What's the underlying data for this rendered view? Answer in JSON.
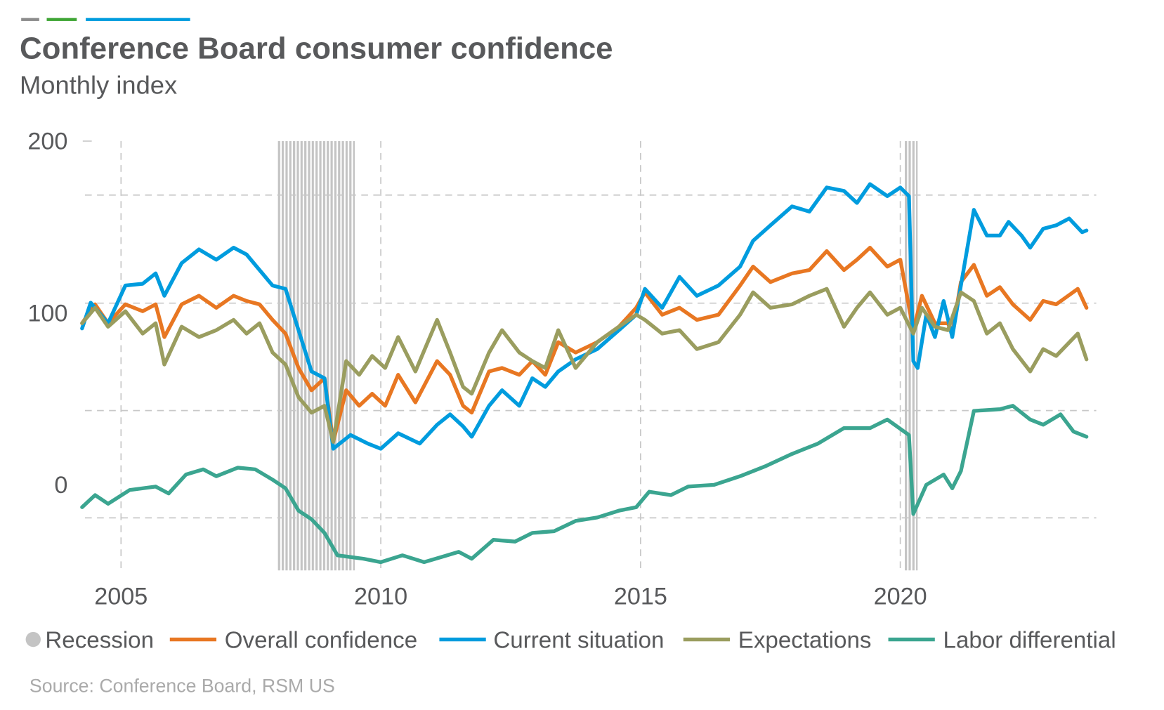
{
  "chart_data": {
    "type": "line",
    "title": "Conference Board consumer confidence",
    "subtitle": "Monthly index",
    "source": "Source: Conference Board, RSM US",
    "xlabel": "",
    "ylabel": "",
    "ylim": [
      -50,
      200
    ],
    "xlim": [
      "2004-04",
      "2023-08"
    ],
    "y_ticks": [
      "200",
      "100",
      "0"
    ],
    "x_ticks": [
      "2005",
      "2010",
      "2015",
      "2020"
    ],
    "grid": true,
    "legend_position": "bottom",
    "recessions": [
      {
        "start": "2008-01",
        "end": "2009-06"
      },
      {
        "start": "2020-02",
        "end": "2020-04"
      }
    ],
    "legend": {
      "recession": "Recession",
      "recession_color": "#c4c4c4"
    },
    "series": [
      {
        "name": "Overall confidence",
        "color": "#e87722",
        "points": [
          [
            "2004-04",
            94
          ],
          [
            "2004-07",
            105
          ],
          [
            "2004-10",
            94
          ],
          [
            "2005-02",
            105
          ],
          [
            "2005-06",
            101
          ],
          [
            "2005-09",
            105
          ],
          [
            "2005-11",
            86
          ],
          [
            "2006-03",
            105
          ],
          [
            "2006-07",
            110
          ],
          [
            "2006-11",
            103
          ],
          [
            "2007-03",
            110
          ],
          [
            "2007-06",
            107
          ],
          [
            "2007-09",
            105
          ],
          [
            "2007-12",
            96
          ],
          [
            "2008-03",
            88
          ],
          [
            "2008-06",
            68
          ],
          [
            "2008-09",
            55
          ],
          [
            "2008-12",
            62
          ],
          [
            "2009-02",
            25
          ],
          [
            "2009-05",
            55
          ],
          [
            "2009-08",
            46
          ],
          [
            "2009-11",
            53
          ],
          [
            "2010-02",
            46
          ],
          [
            "2010-05",
            64
          ],
          [
            "2010-09",
            48
          ],
          [
            "2011-02",
            72
          ],
          [
            "2011-05",
            64
          ],
          [
            "2011-08",
            46
          ],
          [
            "2011-10",
            42
          ],
          [
            "2012-02",
            66
          ],
          [
            "2012-05",
            68
          ],
          [
            "2012-09",
            64
          ],
          [
            "2012-12",
            72
          ],
          [
            "2013-03",
            64
          ],
          [
            "2013-06",
            83
          ],
          [
            "2013-10",
            77
          ],
          [
            "2014-03",
            83
          ],
          [
            "2014-08",
            92
          ],
          [
            "2014-12",
            103
          ],
          [
            "2015-02",
            112
          ],
          [
            "2015-06",
            99
          ],
          [
            "2015-10",
            103
          ],
          [
            "2016-02",
            96
          ],
          [
            "2016-07",
            99
          ],
          [
            "2016-12",
            116
          ],
          [
            "2017-03",
            127
          ],
          [
            "2017-07",
            118
          ],
          [
            "2017-12",
            123
          ],
          [
            "2018-04",
            125
          ],
          [
            "2018-08",
            136
          ],
          [
            "2018-12",
            125
          ],
          [
            "2019-03",
            131
          ],
          [
            "2019-06",
            138
          ],
          [
            "2019-10",
            127
          ],
          [
            "2020-01",
            131
          ],
          [
            "2020-04",
            90
          ],
          [
            "2020-06",
            110
          ],
          [
            "2020-09",
            94
          ],
          [
            "2020-12",
            94
          ],
          [
            "2021-01",
            88
          ],
          [
            "2021-03",
            118
          ],
          [
            "2021-06",
            128
          ],
          [
            "2021-09",
            110
          ],
          [
            "2021-12",
            115
          ],
          [
            "2022-03",
            105
          ],
          [
            "2022-07",
            96
          ],
          [
            "2022-10",
            107
          ],
          [
            "2023-01",
            105
          ],
          [
            "2023-06",
            114
          ],
          [
            "2023-08",
            103
          ]
        ]
      },
      {
        "name": "Current situation",
        "color": "#009cde",
        "points": [
          [
            "2004-04",
            91
          ],
          [
            "2004-06",
            106
          ],
          [
            "2004-10",
            94
          ],
          [
            "2005-02",
            116
          ],
          [
            "2005-06",
            117
          ],
          [
            "2005-09",
            123
          ],
          [
            "2005-11",
            110
          ],
          [
            "2006-03",
            129
          ],
          [
            "2006-07",
            137
          ],
          [
            "2006-11",
            131
          ],
          [
            "2007-03",
            138
          ],
          [
            "2007-06",
            134
          ],
          [
            "2007-09",
            125
          ],
          [
            "2007-12",
            116
          ],
          [
            "2008-03",
            114
          ],
          [
            "2008-06",
            90
          ],
          [
            "2008-09",
            66
          ],
          [
            "2008-12",
            62
          ],
          [
            "2009-02",
            21
          ],
          [
            "2009-06",
            29
          ],
          [
            "2009-10",
            24
          ],
          [
            "2010-01",
            21
          ],
          [
            "2010-05",
            30
          ],
          [
            "2010-10",
            24
          ],
          [
            "2011-02",
            35
          ],
          [
            "2011-05",
            41
          ],
          [
            "2011-08",
            34
          ],
          [
            "2011-10",
            28
          ],
          [
            "2012-02",
            46
          ],
          [
            "2012-05",
            55
          ],
          [
            "2012-09",
            46
          ],
          [
            "2012-12",
            62
          ],
          [
            "2013-03",
            57
          ],
          [
            "2013-06",
            66
          ],
          [
            "2013-10",
            73
          ],
          [
            "2014-03",
            79
          ],
          [
            "2014-08",
            90
          ],
          [
            "2014-12",
            99
          ],
          [
            "2015-02",
            114
          ],
          [
            "2015-06",
            103
          ],
          [
            "2015-10",
            121
          ],
          [
            "2016-02",
            110
          ],
          [
            "2016-07",
            116
          ],
          [
            "2016-12",
            127
          ],
          [
            "2017-03",
            142
          ],
          [
            "2017-07",
            151
          ],
          [
            "2017-12",
            162
          ],
          [
            "2018-04",
            159
          ],
          [
            "2018-08",
            173
          ],
          [
            "2018-12",
            171
          ],
          [
            "2019-03",
            164
          ],
          [
            "2019-06",
            175
          ],
          [
            "2019-10",
            168
          ],
          [
            "2020-01",
            173
          ],
          [
            "2020-03",
            168
          ],
          [
            "2020-04",
            72
          ],
          [
            "2020-05",
            68
          ],
          [
            "2020-07",
            99
          ],
          [
            "2020-09",
            86
          ],
          [
            "2020-11",
            107
          ],
          [
            "2021-01",
            86
          ],
          [
            "2021-03",
            116
          ],
          [
            "2021-06",
            160
          ],
          [
            "2021-09",
            145
          ],
          [
            "2021-12",
            145
          ],
          [
            "2022-02",
            153
          ],
          [
            "2022-05",
            145
          ],
          [
            "2022-07",
            138
          ],
          [
            "2022-10",
            149
          ],
          [
            "2023-01",
            151
          ],
          [
            "2023-04",
            155
          ],
          [
            "2023-07",
            147
          ],
          [
            "2023-08",
            148
          ]
        ]
      },
      {
        "name": "Expectations",
        "color": "#9a9d5f",
        "points": [
          [
            "2004-04",
            94
          ],
          [
            "2004-07",
            103
          ],
          [
            "2004-10",
            92
          ],
          [
            "2005-02",
            101
          ],
          [
            "2005-06",
            88
          ],
          [
            "2005-09",
            94
          ],
          [
            "2005-11",
            70
          ],
          [
            "2006-03",
            92
          ],
          [
            "2006-07",
            86
          ],
          [
            "2006-11",
            90
          ],
          [
            "2007-03",
            96
          ],
          [
            "2007-06",
            88
          ],
          [
            "2007-09",
            94
          ],
          [
            "2007-12",
            77
          ],
          [
            "2008-03",
            70
          ],
          [
            "2008-06",
            51
          ],
          [
            "2008-09",
            42
          ],
          [
            "2008-12",
            46
          ],
          [
            "2009-02",
            25
          ],
          [
            "2009-05",
            72
          ],
          [
            "2009-08",
            64
          ],
          [
            "2009-11",
            75
          ],
          [
            "2010-02",
            68
          ],
          [
            "2010-05",
            86
          ],
          [
            "2010-09",
            66
          ],
          [
            "2011-02",
            96
          ],
          [
            "2011-05",
            77
          ],
          [
            "2011-08",
            57
          ],
          [
            "2011-10",
            53
          ],
          [
            "2012-02",
            77
          ],
          [
            "2012-05",
            90
          ],
          [
            "2012-09",
            77
          ],
          [
            "2012-12",
            72
          ],
          [
            "2013-03",
            68
          ],
          [
            "2013-06",
            90
          ],
          [
            "2013-10",
            68
          ],
          [
            "2014-03",
            83
          ],
          [
            "2014-08",
            92
          ],
          [
            "2014-12",
            99
          ],
          [
            "2015-02",
            96
          ],
          [
            "2015-06",
            88
          ],
          [
            "2015-10",
            90
          ],
          [
            "2016-02",
            79
          ],
          [
            "2016-07",
            83
          ],
          [
            "2016-12",
            99
          ],
          [
            "2017-03",
            112
          ],
          [
            "2017-07",
            103
          ],
          [
            "2017-12",
            105
          ],
          [
            "2018-04",
            110
          ],
          [
            "2018-08",
            114
          ],
          [
            "2018-12",
            92
          ],
          [
            "2019-03",
            103
          ],
          [
            "2019-06",
            112
          ],
          [
            "2019-10",
            99
          ],
          [
            "2020-01",
            103
          ],
          [
            "2020-04",
            88
          ],
          [
            "2020-06",
            103
          ],
          [
            "2020-09",
            92
          ],
          [
            "2020-12",
            90
          ],
          [
            "2021-03",
            112
          ],
          [
            "2021-06",
            107
          ],
          [
            "2021-09",
            88
          ],
          [
            "2021-12",
            94
          ],
          [
            "2022-03",
            79
          ],
          [
            "2022-07",
            66
          ],
          [
            "2022-10",
            79
          ],
          [
            "2023-01",
            75
          ],
          [
            "2023-06",
            88
          ],
          [
            "2023-08",
            73
          ]
        ]
      },
      {
        "name": "Labor differential",
        "color": "#3ba590",
        "points": [
          [
            "2004-04",
            -13
          ],
          [
            "2004-07",
            -6
          ],
          [
            "2004-10",
            -11
          ],
          [
            "2005-03",
            -3
          ],
          [
            "2005-09",
            -1
          ],
          [
            "2005-12",
            -5
          ],
          [
            "2006-04",
            6
          ],
          [
            "2006-08",
            9
          ],
          [
            "2006-11",
            5
          ],
          [
            "2007-04",
            10
          ],
          [
            "2007-08",
            9
          ],
          [
            "2007-12",
            3
          ],
          [
            "2008-03",
            -2
          ],
          [
            "2008-06",
            -15
          ],
          [
            "2008-09",
            -20
          ],
          [
            "2008-12",
            -28
          ],
          [
            "2009-03",
            -41
          ],
          [
            "2009-06",
            -42
          ],
          [
            "2009-09",
            -43
          ],
          [
            "2010-01",
            -45
          ],
          [
            "2010-06",
            -41
          ],
          [
            "2010-11",
            -45
          ],
          [
            "2011-03",
            -42
          ],
          [
            "2011-07",
            -39
          ],
          [
            "2011-10",
            -43
          ],
          [
            "2012-03",
            -32
          ],
          [
            "2012-08",
            -33
          ],
          [
            "2012-12",
            -28
          ],
          [
            "2013-05",
            -27
          ],
          [
            "2013-10",
            -21
          ],
          [
            "2014-03",
            -19
          ],
          [
            "2014-08",
            -15
          ],
          [
            "2014-12",
            -13
          ],
          [
            "2015-03",
            -4
          ],
          [
            "2015-08",
            -6
          ],
          [
            "2015-12",
            -1
          ],
          [
            "2016-06",
            0
          ],
          [
            "2016-12",
            5
          ],
          [
            "2017-06",
            11
          ],
          [
            "2017-12",
            18
          ],
          [
            "2018-06",
            24
          ],
          [
            "2018-12",
            33
          ],
          [
            "2019-06",
            33
          ],
          [
            "2019-10",
            38
          ],
          [
            "2020-03",
            29
          ],
          [
            "2020-04",
            -17
          ],
          [
            "2020-07",
            0
          ],
          [
            "2020-11",
            6
          ],
          [
            "2021-01",
            -2
          ],
          [
            "2021-03",
            8
          ],
          [
            "2021-06",
            43
          ],
          [
            "2021-12",
            44
          ],
          [
            "2022-03",
            46
          ],
          [
            "2022-07",
            38
          ],
          [
            "2022-10",
            35
          ],
          [
            "2023-02",
            41
          ],
          [
            "2023-05",
            31
          ],
          [
            "2023-08",
            28
          ]
        ]
      }
    ]
  },
  "header_bars": {
    "colors": [
      "#8c8c8c",
      "#3fa535",
      "#009cde"
    ]
  }
}
